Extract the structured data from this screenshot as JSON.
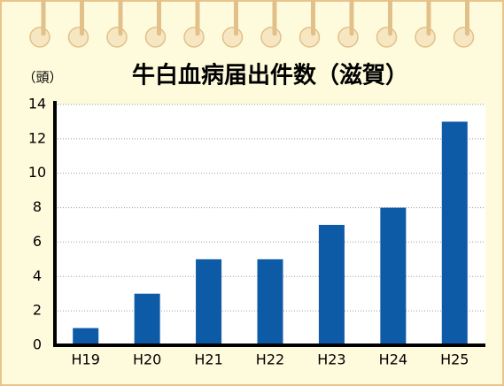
{
  "chart_data": {
    "type": "bar",
    "title": "牛白血病届出件数（滋賀）",
    "y_label": "（頭）",
    "categories": [
      "H19",
      "H20",
      "H21",
      "H22",
      "H23",
      "H24",
      "H25"
    ],
    "values": [
      1,
      3,
      5,
      5,
      7,
      8,
      13
    ],
    "color": "#0d5aa7",
    "ylim": [
      0,
      14
    ],
    "yticks": [
      0,
      2,
      4,
      6,
      8,
      10,
      12,
      14
    ],
    "grid": true
  }
}
